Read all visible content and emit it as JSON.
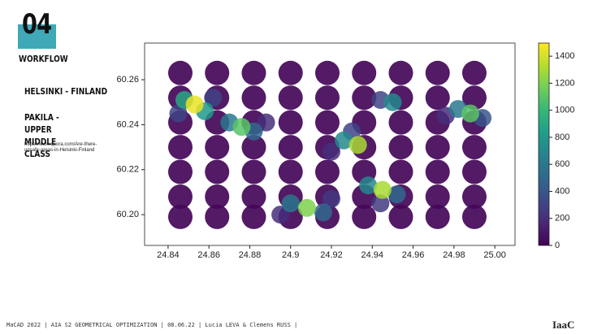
{
  "slide": {
    "number": "04",
    "section": "WORKFLOW",
    "location": "HELSINKI - FINLAND",
    "subtitle": "PAKILA - UPPER MIDDLE CLASS",
    "source": "https://www.quora.com/Are-there-unsafe-areas-in-Helsinki-Finland",
    "footer": "MaCAD 2022 | AIA S2 GEOMETRICAL OPTIMIZATION | 08.06.22 | Lucia LEVA & Clemens RUSS |",
    "logo": "IaaC"
  },
  "chart_data": {
    "type": "scatter",
    "colormap": "viridis",
    "xlim": [
      24.8285,
      25.0099
    ],
    "ylim": [
      60.1863,
      60.2763
    ],
    "clim": [
      0,
      1497
    ],
    "xticks": [
      24.84,
      24.86,
      24.88,
      24.9,
      24.92,
      24.94,
      24.96,
      24.98,
      {
        "value": 25,
        "label": "25.00"
      }
    ],
    "yticks": [
      {
        "value": 60.2,
        "label": "60.20"
      },
      60.22,
      60.24,
      60.26
    ],
    "cticks": [
      0,
      200,
      400,
      600,
      800,
      1000,
      1200,
      1400
    ],
    "series": [
      {
        "x": [
          24.846,
          24.864,
          24.882,
          24.9,
          24.918,
          24.936,
          24.954,
          24.972,
          24.99,
          24.846,
          24.864,
          24.882,
          24.9,
          24.918,
          24.936,
          24.954,
          24.972,
          24.99,
          24.846,
          24.864,
          24.882,
          24.9,
          24.918,
          24.936,
          24.954,
          24.972,
          24.99,
          24.846,
          24.864,
          24.882,
          24.9,
          24.918,
          24.936,
          24.954,
          24.972,
          24.99,
          24.846,
          24.864,
          24.882,
          24.9,
          24.918,
          24.936,
          24.954,
          24.972,
          24.99,
          24.846,
          24.864,
          24.882,
          24.9,
          24.918,
          24.936,
          24.954,
          24.972,
          24.99,
          24.846,
          24.864,
          24.882,
          24.9,
          24.918,
          24.936,
          24.954,
          24.972,
          24.99,
          24.845,
          24.862,
          24.888,
          24.895,
          24.92,
          24.93,
          24.92,
          24.944,
          24.976,
          24.944,
          24.858,
          24.882,
          24.916,
          24.952,
          24.994,
          24.848,
          24.87,
          24.9,
          24.926,
          24.938,
          24.982,
          24.95,
          24.876,
          24.988,
          24.908,
          24.933,
          24.945,
          24.853
        ],
        "y": [
          60.263,
          60.263,
          60.263,
          60.263,
          60.263,
          60.263,
          60.263,
          60.263,
          60.263,
          60.252,
          60.252,
          60.252,
          60.252,
          60.252,
          60.252,
          60.252,
          60.252,
          60.252,
          60.241,
          60.241,
          60.241,
          60.241,
          60.241,
          60.241,
          60.241,
          60.241,
          60.241,
          60.23,
          60.23,
          60.23,
          60.23,
          60.23,
          60.23,
          60.23,
          60.23,
          60.23,
          60.219,
          60.219,
          60.219,
          60.219,
          60.219,
          60.219,
          60.219,
          60.219,
          60.219,
          60.208,
          60.208,
          60.208,
          60.208,
          60.208,
          60.208,
          60.208,
          60.208,
          60.208,
          60.199,
          60.199,
          60.199,
          60.199,
          60.199,
          60.199,
          60.199,
          60.199,
          60.199,
          60.245,
          60.252,
          60.241,
          60.2,
          60.207,
          60.237,
          60.228,
          60.205,
          60.244,
          60.251,
          60.246,
          60.237,
          60.201,
          60.209,
          60.243,
          60.251,
          60.241,
          60.205,
          60.233,
          60.213,
          60.247,
          60.25,
          60.239,
          60.245,
          60.203,
          60.231,
          60.211,
          60.249
        ],
        "c": [
          20,
          20,
          20,
          20,
          20,
          20,
          20,
          20,
          20,
          20,
          20,
          20,
          20,
          20,
          20,
          20,
          20,
          20,
          20,
          20,
          20,
          20,
          20,
          20,
          20,
          20,
          20,
          20,
          20,
          20,
          20,
          20,
          20,
          20,
          20,
          20,
          20,
          20,
          20,
          20,
          20,
          20,
          20,
          20,
          20,
          20,
          20,
          20,
          20,
          20,
          20,
          20,
          20,
          20,
          20,
          20,
          20,
          20,
          20,
          20,
          20,
          20,
          20,
          300,
          300,
          200,
          200,
          250,
          300,
          200,
          250,
          200,
          300,
          800,
          500,
          500,
          500,
          400,
          900,
          600,
          600,
          700,
          700,
          600,
          700,
          1100,
          1100,
          1200,
          1300,
          1300,
          1450
        ]
      }
    ]
  }
}
